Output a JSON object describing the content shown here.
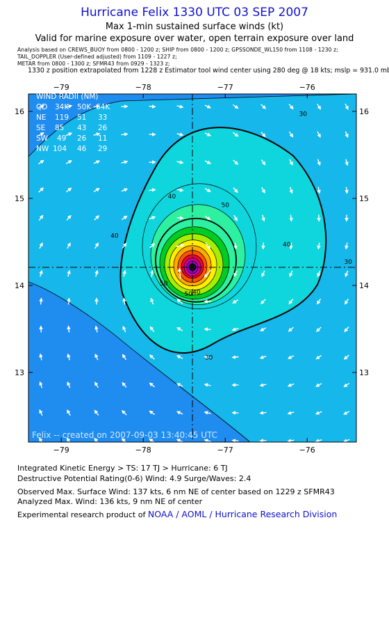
{
  "header": {
    "title": "Hurricane Felix 1330 UTC 03 SEP 2007",
    "subtitle": "Max 1-min sustained surface winds (kt)",
    "validity": "Valid for marine exposure over water, open terrain exposure over land",
    "analysis_line": "Analysis based on   CREWS_BUOY from 0800 - 1200 z;   SHIP from 0800 - 1200 z;   GPSSONDE_WL150 from 1108 - 1230 z;",
    "tail_line": "TAIL_DOPPLER (User-defined adjusted) from 1109 - 1227 z;",
    "metar_line": "METAR from 0800 - 1300 z;   SFMR43 from 0929 - 1323 z;",
    "position_line": "1330 z position extrapolated from 1228 z Estimator tool wind center using 280 deg @ 18 kts; mslp = 931.0 mb"
  },
  "wind_radii": {
    "title": "WIND RADII (NM)",
    "columns": [
      "QD",
      "34K",
      "50K",
      "64K"
    ],
    "rows": [
      [
        "NE",
        "119",
        "51",
        "33"
      ],
      [
        "SE",
        "85",
        "43",
        "26"
      ],
      [
        "SW",
        "49",
        "26",
        "11"
      ],
      [
        "NW",
        "104",
        "46",
        "29"
      ]
    ]
  },
  "footer_label": "Felix -- created on 2007-09-03 13:40:45 UTC",
  "chart_data": {
    "type": "contour",
    "xlim": [
      -79.4,
      -75.4
    ],
    "ylim": [
      12.2,
      16.2
    ],
    "xticks": [
      -79,
      -78,
      -77,
      -76
    ],
    "yticks": [
      13,
      14,
      15,
      16
    ],
    "xtick_labels": [
      "−79",
      "−78",
      "−77",
      "−76"
    ],
    "ytick_labels": [
      "13",
      "14",
      "15",
      "16"
    ],
    "center": {
      "lon": -77.4,
      "lat": 14.21
    },
    "contour_labels": [
      {
        "text": "30",
        "lon": -76.05,
        "lat": 15.95
      },
      {
        "text": "40",
        "lon": -77.65,
        "lat": 15.0
      },
      {
        "text": "40",
        "lon": -76.25,
        "lat": 14.45
      },
      {
        "text": "40",
        "lon": -77.35,
        "lat": 13.9
      },
      {
        "text": "50",
        "lon": -77.0,
        "lat": 14.9
      },
      {
        "text": "50",
        "lon": -77.75,
        "lat": 14.0
      },
      {
        "text": "50",
        "lon": -77.45,
        "lat": 13.88
      },
      {
        "text": "30",
        "lon": -77.2,
        "lat": 13.15
      },
      {
        "text": "30",
        "lon": -75.5,
        "lat": 14.25
      },
      {
        "text": "40",
        "lon": -78.35,
        "lat": 14.55
      }
    ],
    "colors": {
      "outer": "#1f8cf0",
      "30": "#16b7ea",
      "40": "#0fd6dc",
      "50": "#2df0a0",
      "60": "#00cc22",
      "70": "#a8ee00",
      "80": "#ffee00",
      "90": "#ffaa00",
      "100": "#ff5500",
      "110": "#ee0033",
      "120": "#cc0099",
      "130": "#9900cc",
      "eye": "#111111"
    }
  },
  "stats": {
    "ike": "Integrated Kinetic Energy > TS: 17 TJ   > Hurricane: 6 TJ",
    "dpr": "Destructive Potential Rating(0-6)   Wind: 4.9 Surge/Waves: 2.4",
    "observed": "Observed Max. Surface Wind: 137 kts, 6 nm NE of center based on 1229 z SFMR43",
    "analyzed": "Analyzed Max. Wind: 136 kts, 9 nm NE of center",
    "credit_prefix": "Experimental research product of",
    "credit_org": "NOAA / AOML / Hurricane Research Division"
  }
}
